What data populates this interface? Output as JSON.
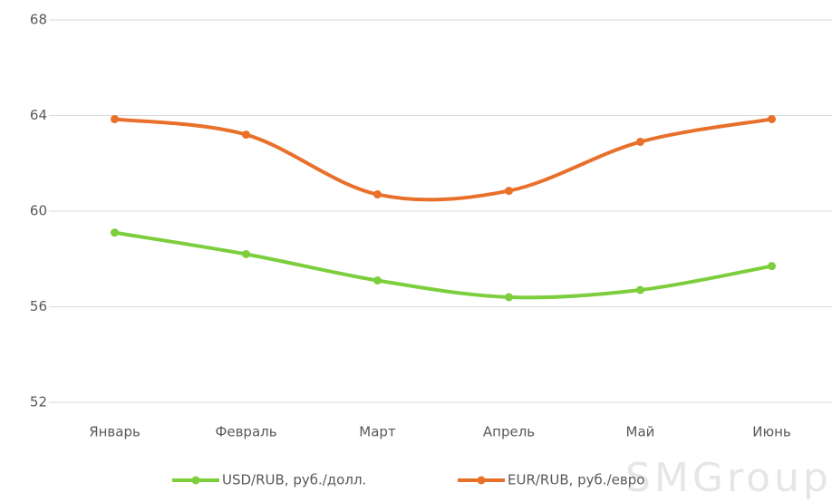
{
  "chart_data": {
    "type": "line",
    "categories": [
      "Январь",
      "Февраль",
      "Март",
      "Апрель",
      "Май",
      "Июнь"
    ],
    "series": [
      {
        "name": "USD/RUB, руб./долл.",
        "color": "#7cce3c",
        "values": [
          59.1,
          58.2,
          57.1,
          56.4,
          56.7,
          57.7
        ]
      },
      {
        "name": "EUR/RUB, руб./евро",
        "color": "#e8702a",
        "values": [
          63.85,
          63.2,
          60.7,
          60.85,
          62.9,
          63.85
        ]
      }
    ],
    "ylim": [
      52,
      68
    ],
    "yticks": [
      52,
      56,
      60,
      64,
      68
    ],
    "grid": true,
    "smooth": true,
    "legend": "bottom",
    "watermark": "SMGroup"
  }
}
